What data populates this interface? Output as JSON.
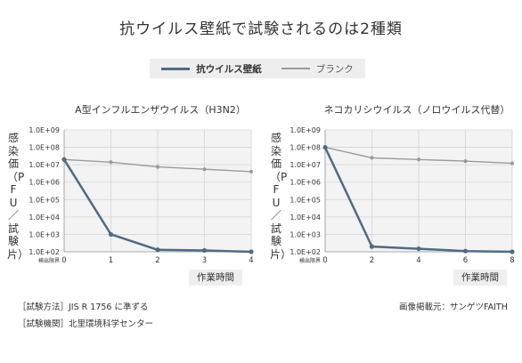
{
  "title": "抗ウイルス壁紙で試験されるのは2種類",
  "legend": [
    {
      "label": "抗ウイルス壁紙",
      "color": "#4f6b84"
    },
    {
      "label": "ブランク",
      "color": "#9a9a9a"
    }
  ],
  "ylabel": "感染価（PFU／試験片）",
  "detection_limit_label": "検出限界",
  "chart_data": [
    {
      "type": "line",
      "title": "A型インフルエンザウイルス（H3N2）",
      "xlabel": "作業時間",
      "ylabel": "感染価（PFU／試験片）",
      "y_scale": "log",
      "ylim": [
        100,
        1000000000
      ],
      "yticks": [
        "1.0E+09",
        "1.0E+08",
        "1.0E+07",
        "1.0E+06",
        "1.0E+05",
        "1.0E+04",
        "1.0E+03",
        "1.0E+02"
      ],
      "x": [
        0,
        1,
        2,
        3,
        4
      ],
      "xticks": [
        "0",
        "1",
        "2",
        "3",
        "4"
      ],
      "xlim": [
        0,
        4
      ],
      "grid": true,
      "series": [
        {
          "name": "抗ウイルス壁紙",
          "values": [
            20000000,
            1000,
            130,
            120,
            100
          ]
        },
        {
          "name": "ブランク",
          "values": [
            20000000,
            14000000,
            7500000,
            5500000,
            4000000
          ]
        }
      ]
    },
    {
      "type": "line",
      "title": "ネコカリシウイルス（ノロウイルス代替）",
      "xlabel": "作業時間",
      "ylabel": "感染価（PFU／試験片）",
      "y_scale": "log",
      "ylim": [
        100,
        1000000000
      ],
      "yticks": [
        "1.0E+09",
        "1.0E+08",
        "1.0E+07",
        "1.0E+06",
        "1.0E+05",
        "1.0E+04",
        "1.0E+03",
        "1.0E+02"
      ],
      "x": [
        0,
        2,
        4,
        6,
        8
      ],
      "xticks": [
        "0",
        "2",
        "4",
        "6",
        "8"
      ],
      "xlim": [
        0,
        8
      ],
      "grid": true,
      "series": [
        {
          "name": "抗ウイルス壁紙",
          "values": [
            100000000,
            200,
            150,
            110,
            100
          ]
        },
        {
          "name": "ブランク",
          "values": [
            100000000,
            25000000,
            20000000,
            16000000,
            12000000
          ]
        }
      ]
    }
  ],
  "footer": {
    "method": "［試験方法］JIS R 1756 に準ずる",
    "institution": "［試験機関］北里環境科学センター",
    "source": "画像掲載元：サンゲツFAITH"
  }
}
